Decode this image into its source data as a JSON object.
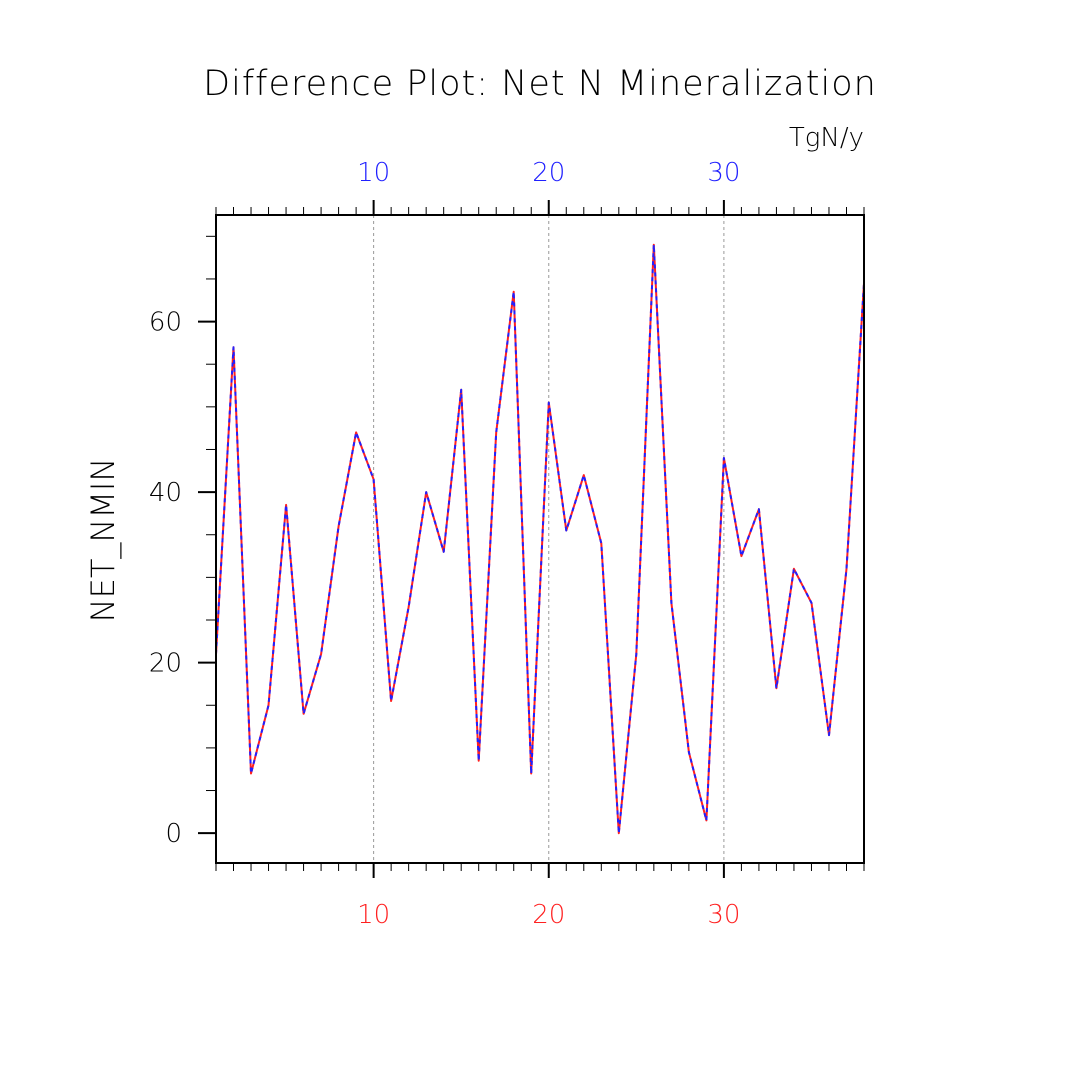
{
  "chart_data": {
    "type": "line",
    "title": "Difference Plot: Net N Mineralization",
    "units": "TgN/y",
    "ylabel": "NET_NMIN",
    "xlabel": "",
    "xlim": [
      1,
      38
    ],
    "ylim": [
      -3.5,
      72.5
    ],
    "x_ticks": [
      10,
      20,
      30
    ],
    "y_ticks": [
      0,
      20,
      40,
      60
    ],
    "grid_x": true,
    "grid_y": false,
    "bottom_axis_color": "#ff2020",
    "top_axis_color": "#2020ff",
    "x": [
      1,
      2,
      3,
      4,
      5,
      6,
      7,
      8,
      9,
      10,
      11,
      12,
      13,
      14,
      15,
      16,
      17,
      18,
      19,
      20,
      21,
      22,
      23,
      24,
      25,
      26,
      27,
      28,
      29,
      30,
      31,
      32,
      33,
      34,
      35,
      36,
      37,
      38
    ],
    "series": [
      {
        "color": "#ff2020",
        "values": [
          21,
          57,
          7,
          15,
          38.5,
          14,
          21,
          36,
          47,
          41.5,
          15.5,
          26.5,
          40,
          33,
          52,
          8.5,
          47,
          63.5,
          7,
          50.5,
          35.5,
          42,
          34,
          0,
          21,
          69,
          27,
          9.5,
          1.5,
          44,
          32.5,
          38,
          17,
          31,
          27,
          11.5,
          31,
          64.5
        ]
      },
      {
        "color": "#2020ff",
        "values": [
          21,
          57,
          7,
          15,
          38.5,
          14,
          21,
          36,
          47,
          41.5,
          15.5,
          26.5,
          40,
          33,
          52,
          8.5,
          47,
          63.5,
          7,
          50.5,
          35.5,
          42,
          34,
          0,
          21,
          69,
          27,
          9.5,
          1.5,
          44,
          32.5,
          38,
          17,
          31,
          27,
          11.5,
          31,
          64.5
        ]
      }
    ]
  }
}
